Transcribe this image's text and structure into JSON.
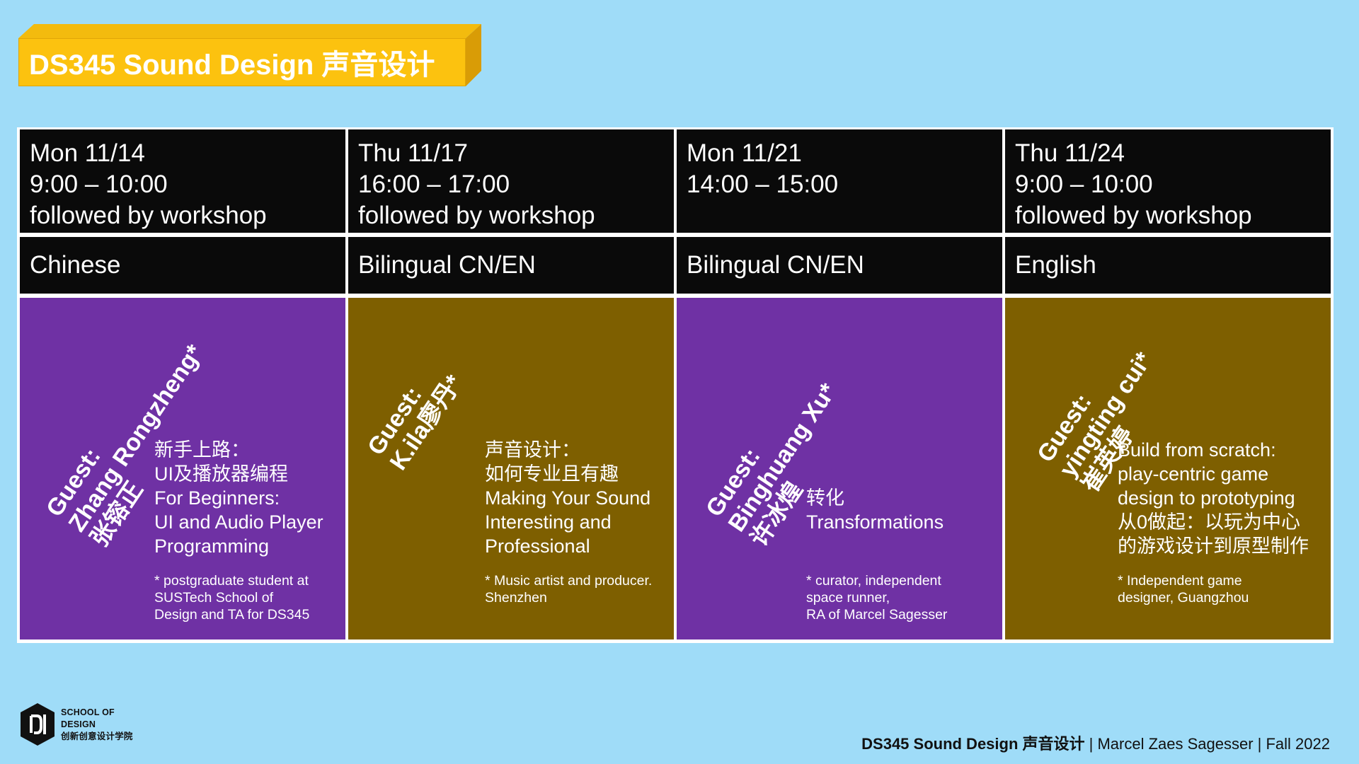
{
  "title": "DS345 Sound Design 声音设计",
  "sessions": [
    {
      "day": "Mon 11/14",
      "time": "9:00 – 10:00",
      "note": "followed by workshop",
      "language": "Chinese",
      "guest_line1": "Guest:",
      "guest_line2": "Zhang Rongzheng*",
      "guest_line3": "张镕正",
      "topic": [
        "新手上路：",
        "UI及播放器编程",
        "For Beginners:",
        "UI and Audio Player",
        "Programming"
      ],
      "footnote": [
        "* postgraduate student at",
        "SUSTech School of",
        "Design and TA for DS345"
      ]
    },
    {
      "day": "Thu 11/17",
      "time": "16:00 – 17:00",
      "note": "followed by workshop",
      "language": "Bilingual CN/EN",
      "guest_line1": "Guest:",
      "guest_line2": "K.ila廖丹*",
      "guest_line3": "",
      "topic": [
        "声音设计：",
        "如何专业且有趣",
        "Making Your Sound",
        "Interesting and",
        "Professional"
      ],
      "footnote": [
        "* Music artist and producer.",
        "Shenzhen"
      ]
    },
    {
      "day": "Mon 11/21",
      "time": "14:00 – 15:00",
      "note": "",
      "language": "Bilingual CN/EN",
      "guest_line1": "Guest:",
      "guest_line2": "Binghuang Xu*",
      "guest_line3": "许冰煌",
      "topic": [
        "转化",
        "Transformations"
      ],
      "footnote": [
        "* curator, independent",
        "space runner,",
        "RA of Marcel Sagesser"
      ]
    },
    {
      "day": "Thu 11/24",
      "time": "9:00 – 10:00",
      "note": "followed by workshop",
      "language": "English",
      "guest_line1": "Guest:",
      "guest_line2": "yingting cui*",
      "guest_line3": "崔英婷",
      "topic": [
        "Build from scratch:",
        "play-centric game",
        "design to prototyping",
        "从0做起：以玩为中心",
        "的游戏设计到原型制作"
      ],
      "footnote": [
        "* Independent game",
        "designer, Guangzhou"
      ]
    }
  ],
  "logo": {
    "line1": "SCHOOL OF",
    "line2": "DESIGN",
    "line3": "创新创意设计学院",
    "icon": "school-of-design-logo-icon"
  },
  "footer": {
    "course": "DS345 Sound Design 声音设计",
    "rest": " | Marcel Zaes Sagesser | Fall 2022"
  },
  "colors": {
    "background": "#9fdcf8",
    "title_yellow": "#fcc20f",
    "header_black": "#0a0a0a",
    "purple": "#6f31a4",
    "olive": "#7e5f00"
  }
}
